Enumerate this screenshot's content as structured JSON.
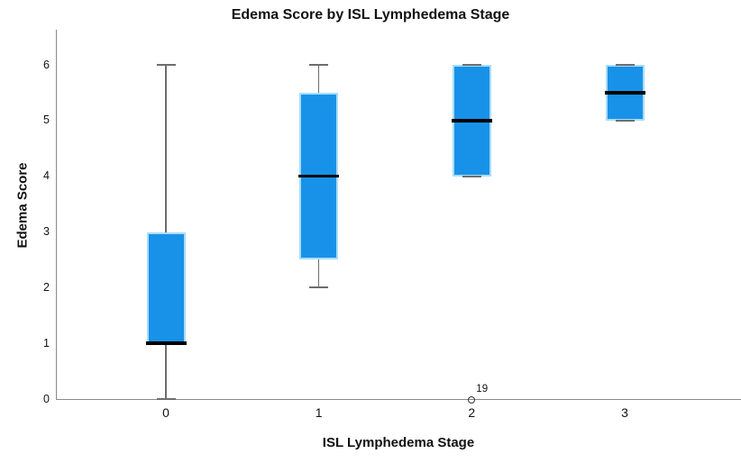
{
  "chart_data": {
    "type": "box",
    "title": "Edema Score by ISL Lymphedema Stage",
    "xlabel": "ISL Lymphedema Stage",
    "ylabel": "Edema Score",
    "categories": [
      "0",
      "1",
      "2",
      "3"
    ],
    "y_ticks": [
      0,
      1,
      2,
      3,
      4,
      5,
      6
    ],
    "ylim": [
      0,
      6.6
    ],
    "grid": false,
    "legend": "none",
    "boxes": [
      {
        "category": "0",
        "whisker_low": 0,
        "q1": 1,
        "median": 1,
        "q3": 3,
        "whisker_high": 6,
        "outliers": []
      },
      {
        "category": "1",
        "whisker_low": 2,
        "q1": 2.5,
        "median": 4,
        "q3": 5.5,
        "whisker_high": 6,
        "outliers": []
      },
      {
        "category": "2",
        "whisker_low": 4,
        "q1": 4,
        "median": 5,
        "q3": 6,
        "whisker_high": 6,
        "outliers": [
          {
            "value": 0,
            "label": "19"
          }
        ]
      },
      {
        "category": "3",
        "whisker_low": 5,
        "q1": 5,
        "median": 5.5,
        "q3": 6,
        "whisker_high": 6,
        "outliers": []
      }
    ],
    "colors": {
      "box_fill": "#1792E8",
      "box_border": "#A9DBF8",
      "median": "#000000",
      "whisker": "#6E6E6E",
      "axis": "#8A8A8A",
      "text": "#111111"
    }
  }
}
